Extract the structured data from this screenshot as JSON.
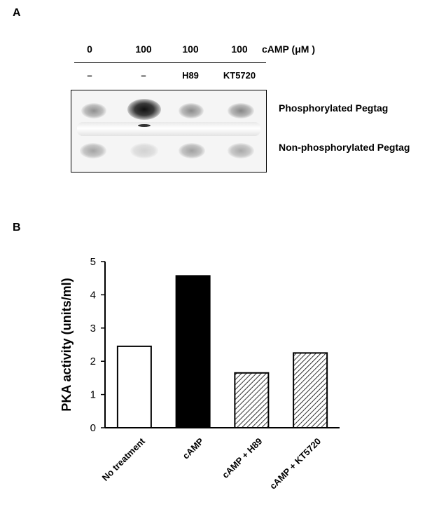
{
  "panel_a": {
    "label": "A",
    "camp_values": [
      "0",
      "100",
      "100",
      "100"
    ],
    "camp_unit_label": "cAMP (μM )",
    "inhibitors": [
      "–",
      "–",
      "H89",
      "KT5720"
    ],
    "band_labels": [
      "Phosphorylated Pegtag",
      "Non-phosphorylated Pegtag"
    ]
  },
  "panel_b": {
    "label": "B"
  },
  "chart_data": {
    "type": "bar",
    "categories": [
      "No treatment",
      "cAMP",
      "cAMP + H89",
      "cAMP + KT5720"
    ],
    "values": [
      2.45,
      4.57,
      1.65,
      2.25
    ],
    "fills": [
      "white",
      "black",
      "hatched",
      "hatched"
    ],
    "ylabel": "PKA activity (units/ml)",
    "xlabel": "",
    "ylim": [
      0,
      5
    ],
    "yticks": [
      "0",
      "1",
      "2",
      "3",
      "4",
      "5"
    ],
    "grid": false
  }
}
